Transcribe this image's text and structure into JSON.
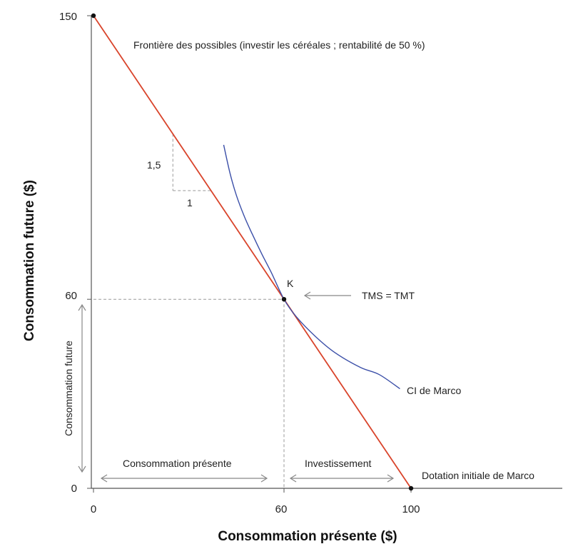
{
  "chart_data": {
    "type": "line",
    "title": "",
    "xlabel": "Consommation présente ($)",
    "ylabel": "Consommation future ($)",
    "xlim": [
      0,
      150
    ],
    "ylim": [
      0,
      150
    ],
    "x_ticks": [
      0,
      60,
      100
    ],
    "x_tick_labels": [
      "0",
      "60",
      "100"
    ],
    "y_ticks": [
      0,
      60,
      150
    ],
    "y_tick_labels": [
      "0",
      "60",
      "150"
    ],
    "grid": false,
    "series": [
      {
        "name": "Frontière des possibles (investir les céréales ; rentabilité de 50 %)",
        "color": "#d9442b",
        "x": [
          0,
          100
        ],
        "y": [
          150,
          0
        ]
      },
      {
        "name": "CI de Marco",
        "color": "#3b4fa8",
        "x": [
          41,
          43,
          45,
          47.5,
          50,
          53,
          56,
          60,
          64,
          70,
          76,
          84,
          90,
          96.5
        ],
        "y": [
          109,
          100,
          93,
          86.3,
          80.7,
          74.4,
          68.5,
          60,
          54.3,
          48.1,
          43.1,
          38.4,
          36.1,
          31.6
        ]
      }
    ],
    "points": [
      {
        "label": "",
        "x": 0,
        "y": 150
      },
      {
        "label": "K",
        "x": 60,
        "y": 60
      },
      {
        "label": "",
        "x": 100,
        "y": 0
      }
    ],
    "slope_triangle": {
      "x0": 25,
      "x1": 37,
      "rise_label": "1,5",
      "run_label": "1"
    },
    "annotations": {
      "frontier": "Frontière des possibles (investir les céréales ; rentabilité de 50 %)",
      "indifference": "CI de Marco",
      "tangency": "TMS = TMT",
      "endowment": "Dotation initiale de Marco",
      "present": "Consommation présente",
      "investment": "Investissement",
      "future": "Consommation future",
      "point_k": "K"
    },
    "colors": {
      "frontier": "#d9442b",
      "indifference": "#3b4fa8",
      "axis": "#333333",
      "guide": "#999999"
    }
  }
}
